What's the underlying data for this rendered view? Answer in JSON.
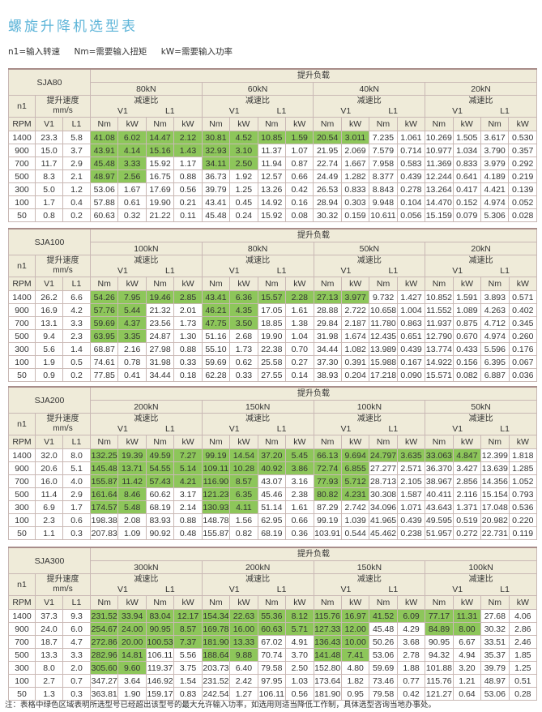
{
  "title": "螺旋升降机选型表",
  "legend": [
    "n1=输入转速",
    "Nm=需要输入扭矩",
    "kW=需要输入功率"
  ],
  "labels": {
    "load": "提升负载",
    "n1": "n1",
    "speed": "提升速度",
    "speed_unit": "mm/s",
    "ratio": "减速比",
    "v1": "V1",
    "l1": "L1",
    "rpm": "RPM",
    "nm": "Nm",
    "kw": "kW"
  },
  "highlight_color": "#8dc65a",
  "rpm": [
    "1400",
    "900",
    "700",
    "500",
    "300",
    "100",
    "50"
  ],
  "tables": [
    {
      "model": "SJA80",
      "v1": [
        "23.3",
        "15.0",
        "11.7",
        "8.3",
        "5.0",
        "1.7",
        "0.8"
      ],
      "l1": [
        "5.8",
        "3.7",
        "2.9",
        "2.1",
        "1.2",
        "0.4",
        "0.2"
      ],
      "loads": [
        {
          "label": "80kN",
          "green": [
            4,
            4,
            2,
            2,
            0,
            0,
            0
          ],
          "rows": [
            [
              "41.08",
              "6.02",
              "14.47",
              "2.12"
            ],
            [
              "43.91",
              "4.14",
              "15.16",
              "1.43"
            ],
            [
              "45.48",
              "3.33",
              "15.92",
              "1.17"
            ],
            [
              "48.97",
              "2.56",
              "16.75",
              "0.88"
            ],
            [
              "53.06",
              "1.67",
              "17.69",
              "0.56"
            ],
            [
              "57.88",
              "0.61",
              "19.90",
              "0.21"
            ],
            [
              "60.63",
              "0.32",
              "21.22",
              "0.11"
            ]
          ]
        },
        {
          "label": "60kN",
          "green": [
            4,
            2,
            2,
            0,
            0,
            0,
            0
          ],
          "rows": [
            [
              "30.81",
              "4.52",
              "10.85",
              "1.59"
            ],
            [
              "32.93",
              "3.10",
              "11.37",
              "1.07"
            ],
            [
              "34.11",
              "2.50",
              "11.94",
              "0.87"
            ],
            [
              "36.73",
              "1.92",
              "12.57",
              "0.66"
            ],
            [
              "39.79",
              "1.25",
              "13.26",
              "0.42"
            ],
            [
              "43.41",
              "0.45",
              "14.92",
              "0.16"
            ],
            [
              "45.48",
              "0.24",
              "15.92",
              "0.08"
            ]
          ]
        },
        {
          "label": "40kN",
          "green": [
            2,
            0,
            0,
            0,
            0,
            0,
            0
          ],
          "rows": [
            [
              "20.54",
              "3.011",
              "7.235",
              "1.061"
            ],
            [
              "21.95",
              "2.069",
              "7.579",
              "0.714"
            ],
            [
              "22.74",
              "1.667",
              "7.958",
              "0.583"
            ],
            [
              "24.49",
              "1.282",
              "8.377",
              "0.439"
            ],
            [
              "26.53",
              "0.833",
              "8.843",
              "0.278"
            ],
            [
              "28.94",
              "0.303",
              "9.948",
              "0.104"
            ],
            [
              "30.32",
              "0.159",
              "10.611",
              "0.056"
            ]
          ]
        },
        {
          "label": "20kN",
          "green": [
            0,
            0,
            0,
            0,
            0,
            0,
            0
          ],
          "rows": [
            [
              "10.269",
              "1.505",
              "3.617",
              "0.530"
            ],
            [
              "10.977",
              "1.034",
              "3.790",
              "0.357"
            ],
            [
              "11.369",
              "0.833",
              "3.979",
              "0.292"
            ],
            [
              "12.244",
              "0.641",
              "4.189",
              "0.219"
            ],
            [
              "13.264",
              "0.417",
              "4.421",
              "0.139"
            ],
            [
              "14.470",
              "0.152",
              "4.974",
              "0.052"
            ],
            [
              "15.159",
              "0.079",
              "5.306",
              "0.028"
            ]
          ]
        }
      ]
    },
    {
      "model": "SJA100",
      "v1": [
        "26.2",
        "16.9",
        "13.1",
        "9.4",
        "5.6",
        "1.9",
        "0.9"
      ],
      "l1": [
        "6.6",
        "4.2",
        "3.3",
        "2.3",
        "1.4",
        "0.5",
        "0.2"
      ],
      "loads": [
        {
          "label": "100kN",
          "green": [
            4,
            2,
            2,
            2,
            0,
            0,
            0
          ],
          "rows": [
            [
              "54.26",
              "7.95",
              "19.46",
              "2.85"
            ],
            [
              "57.76",
              "5.44",
              "21.32",
              "2.01"
            ],
            [
              "59.69",
              "4.37",
              "23.56",
              "1.73"
            ],
            [
              "63.95",
              "3.35",
              "24.87",
              "1.30"
            ],
            [
              "68.87",
              "2.16",
              "27.98",
              "0.88"
            ],
            [
              "74.61",
              "0.78",
              "31.98",
              "0.33"
            ],
            [
              "77.85",
              "0.41",
              "34.44",
              "0.18"
            ]
          ]
        },
        {
          "label": "80kN",
          "green": [
            4,
            2,
            2,
            0,
            0,
            0,
            0
          ],
          "rows": [
            [
              "43.41",
              "6.36",
              "15.57",
              "2.28"
            ],
            [
              "46.21",
              "4.35",
              "17.05",
              "1.61"
            ],
            [
              "47.75",
              "3.50",
              "18.85",
              "1.38"
            ],
            [
              "51.16",
              "2.68",
              "19.90",
              "1.04"
            ],
            [
              "55.10",
              "1.73",
              "22.38",
              "0.70"
            ],
            [
              "59.69",
              "0.62",
              "25.58",
              "0.27"
            ],
            [
              "62.28",
              "0.33",
              "27.55",
              "0.14"
            ]
          ]
        },
        {
          "label": "50kN",
          "green": [
            2,
            0,
            0,
            0,
            0,
            0,
            0
          ],
          "rows": [
            [
              "27.13",
              "3.977",
              "9.732",
              "1.427"
            ],
            [
              "28.88",
              "2.722",
              "10.658",
              "1.004"
            ],
            [
              "29.84",
              "2.187",
              "11.780",
              "0.863"
            ],
            [
              "31.98",
              "1.674",
              "12.435",
              "0.651"
            ],
            [
              "34.44",
              "1.082",
              "13.989",
              "0.439"
            ],
            [
              "37.30",
              "0.391",
              "15.988",
              "0.167"
            ],
            [
              "38.93",
              "0.204",
              "17.218",
              "0.090"
            ]
          ]
        },
        {
          "label": "20kN",
          "green": [
            0,
            0,
            0,
            0,
            0,
            0,
            0
          ],
          "rows": [
            [
              "10.852",
              "1.591",
              "3.893",
              "0.571"
            ],
            [
              "11.552",
              "1.089",
              "4.263",
              "0.402"
            ],
            [
              "11.937",
              "0.875",
              "4.712",
              "0.345"
            ],
            [
              "12.790",
              "0.670",
              "4.974",
              "0.260"
            ],
            [
              "13.774",
              "0.433",
              "5.596",
              "0.176"
            ],
            [
              "14.922",
              "0.156",
              "6.395",
              "0.067"
            ],
            [
              "15.571",
              "0.082",
              "6.887",
              "0.036"
            ]
          ]
        }
      ]
    },
    {
      "model": "SJA200",
      "v1": [
        "32.0",
        "20.6",
        "16.0",
        "11.4",
        "6.9",
        "2.3",
        "1.1"
      ],
      "l1": [
        "8.0",
        "5.1",
        "4.0",
        "2.9",
        "1.7",
        "0.6",
        "0.3"
      ],
      "loads": [
        {
          "label": "200kN",
          "green": [
            4,
            4,
            4,
            2,
            2,
            0,
            0
          ],
          "rows": [
            [
              "132.25",
              "19.39",
              "49.59",
              "7.27"
            ],
            [
              "145.48",
              "13.71",
              "54.55",
              "5.14"
            ],
            [
              "155.87",
              "11.42",
              "57.43",
              "4.21"
            ],
            [
              "161.64",
              "8.46",
              "60.62",
              "3.17"
            ],
            [
              "174.57",
              "5.48",
              "68.19",
              "2.14"
            ],
            [
              "198.38",
              "2.08",
              "83.93",
              "0.88"
            ],
            [
              "207.83",
              "1.09",
              "90.92",
              "0.48"
            ]
          ]
        },
        {
          "label": "150kN",
          "green": [
            4,
            4,
            2,
            2,
            2,
            0,
            0
          ],
          "rows": [
            [
              "99.19",
              "14.54",
              "37.20",
              "5.45"
            ],
            [
              "109.11",
              "10.28",
              "40.92",
              "3.86"
            ],
            [
              "116.90",
              "8.57",
              "43.07",
              "3.16"
            ],
            [
              "121.23",
              "6.35",
              "45.46",
              "2.38"
            ],
            [
              "130.93",
              "4.11",
              "51.14",
              "1.61"
            ],
            [
              "148.78",
              "1.56",
              "62.95",
              "0.66"
            ],
            [
              "155.87",
              "0.82",
              "68.19",
              "0.36"
            ]
          ]
        },
        {
          "label": "100kN",
          "green": [
            4,
            2,
            2,
            2,
            0,
            0,
            0
          ],
          "rows": [
            [
              "66.13",
              "9.694",
              "24.797",
              "3.635"
            ],
            [
              "72.74",
              "6.855",
              "27.277",
              "2.571"
            ],
            [
              "77.93",
              "5.712",
              "28.713",
              "2.105"
            ],
            [
              "80.82",
              "4.231",
              "30.308",
              "1.587"
            ],
            [
              "87.29",
              "2.742",
              "34.096",
              "1.071"
            ],
            [
              "99.19",
              "1.039",
              "41.965",
              "0.439"
            ],
            [
              "103.91",
              "0.544",
              "45.462",
              "0.238"
            ]
          ]
        },
        {
          "label": "50kN",
          "green": [
            2,
            0,
            0,
            0,
            0,
            0,
            0
          ],
          "rows": [
            [
              "33.063",
              "4.847",
              "12.399",
              "1.818"
            ],
            [
              "36.370",
              "3.427",
              "13.639",
              "1.285"
            ],
            [
              "38.967",
              "2.856",
              "14.356",
              "1.052"
            ],
            [
              "40.411",
              "2.116",
              "15.154",
              "0.793"
            ],
            [
              "43.643",
              "1.371",
              "17.048",
              "0.536"
            ],
            [
              "49.595",
              "0.519",
              "20.982",
              "0.220"
            ],
            [
              "51.957",
              "0.272",
              "22.731",
              "0.119"
            ]
          ]
        }
      ]
    },
    {
      "model": "SJA300",
      "v1": [
        "37.3",
        "24.0",
        "18.7",
        "13.3",
        "8.0",
        "2.7",
        "1.3"
      ],
      "l1": [
        "9.3",
        "6.0",
        "4.7",
        "3.3",
        "2.0",
        "0.7",
        "0.3"
      ],
      "loads": [
        {
          "label": "300kN",
          "green": [
            4,
            4,
            4,
            2,
            2,
            0,
            0
          ],
          "rows": [
            [
              "231.52",
              "33.94",
              "83.04",
              "12.17"
            ],
            [
              "254.67",
              "24.00",
              "90.95",
              "8.57"
            ],
            [
              "272.86",
              "20.00",
              "100.53",
              "7.37"
            ],
            [
              "282.96",
              "14.81",
              "106.11",
              "5.56"
            ],
            [
              "305.60",
              "9.60",
              "119.37",
              "3.75"
            ],
            [
              "347.27",
              "3.64",
              "146.92",
              "1.54"
            ],
            [
              "363.81",
              "1.90",
              "159.17",
              "0.83"
            ]
          ]
        },
        {
          "label": "200kN",
          "green": [
            4,
            4,
            2,
            2,
            0,
            0,
            0
          ],
          "rows": [
            [
              "154.34",
              "22.63",
              "55.36",
              "8.12"
            ],
            [
              "169.78",
              "16.00",
              "60.63",
              "5.71"
            ],
            [
              "181.90",
              "13.33",
              "67.02",
              "4.91"
            ],
            [
              "188.64",
              "9.88",
              "70.74",
              "3.70"
            ],
            [
              "203.73",
              "6.40",
              "79.58",
              "2.50"
            ],
            [
              "231.52",
              "2.42",
              "97.95",
              "1.03"
            ],
            [
              "242.54",
              "1.27",
              "106.11",
              "0.56"
            ]
          ]
        },
        {
          "label": "150kN",
          "green": [
            4,
            2,
            2,
            2,
            0,
            0,
            0
          ],
          "rows": [
            [
              "115.76",
              "16.97",
              "41.52",
              "6.09"
            ],
            [
              "127.33",
              "12.00",
              "45.48",
              "4.29"
            ],
            [
              "136.43",
              "10.00",
              "50.26",
              "3.68"
            ],
            [
              "141.48",
              "7.41",
              "53.06",
              "2.78"
            ],
            [
              "152.80",
              "4.80",
              "59.69",
              "1.88"
            ],
            [
              "173.64",
              "1.82",
              "73.46",
              "0.77"
            ],
            [
              "181.90",
              "0.95",
              "79.58",
              "0.42"
            ]
          ]
        },
        {
          "label": "100kN",
          "green": [
            2,
            2,
            0,
            0,
            0,
            0,
            0
          ],
          "rows": [
            [
              "77.17",
              "11.31",
              "27.68",
              "4.06"
            ],
            [
              "84.89",
              "8.00",
              "30.32",
              "2.86"
            ],
            [
              "90.95",
              "6.67",
              "33.51",
              "2.46"
            ],
            [
              "94.32",
              "4.94",
              "35.37",
              "1.85"
            ],
            [
              "101.88",
              "3.20",
              "39.79",
              "1.25"
            ],
            [
              "115.76",
              "1.21",
              "48.97",
              "0.51"
            ],
            [
              "121.27",
              "0.64",
              "53.06",
              "0.28"
            ]
          ]
        }
      ]
    }
  ],
  "note": "注：表格中绿色区域表明所选型号已经超出该型号的最大允许输入功率，如选用则适当降低工作制，具体选型咨询当地办事处。"
}
